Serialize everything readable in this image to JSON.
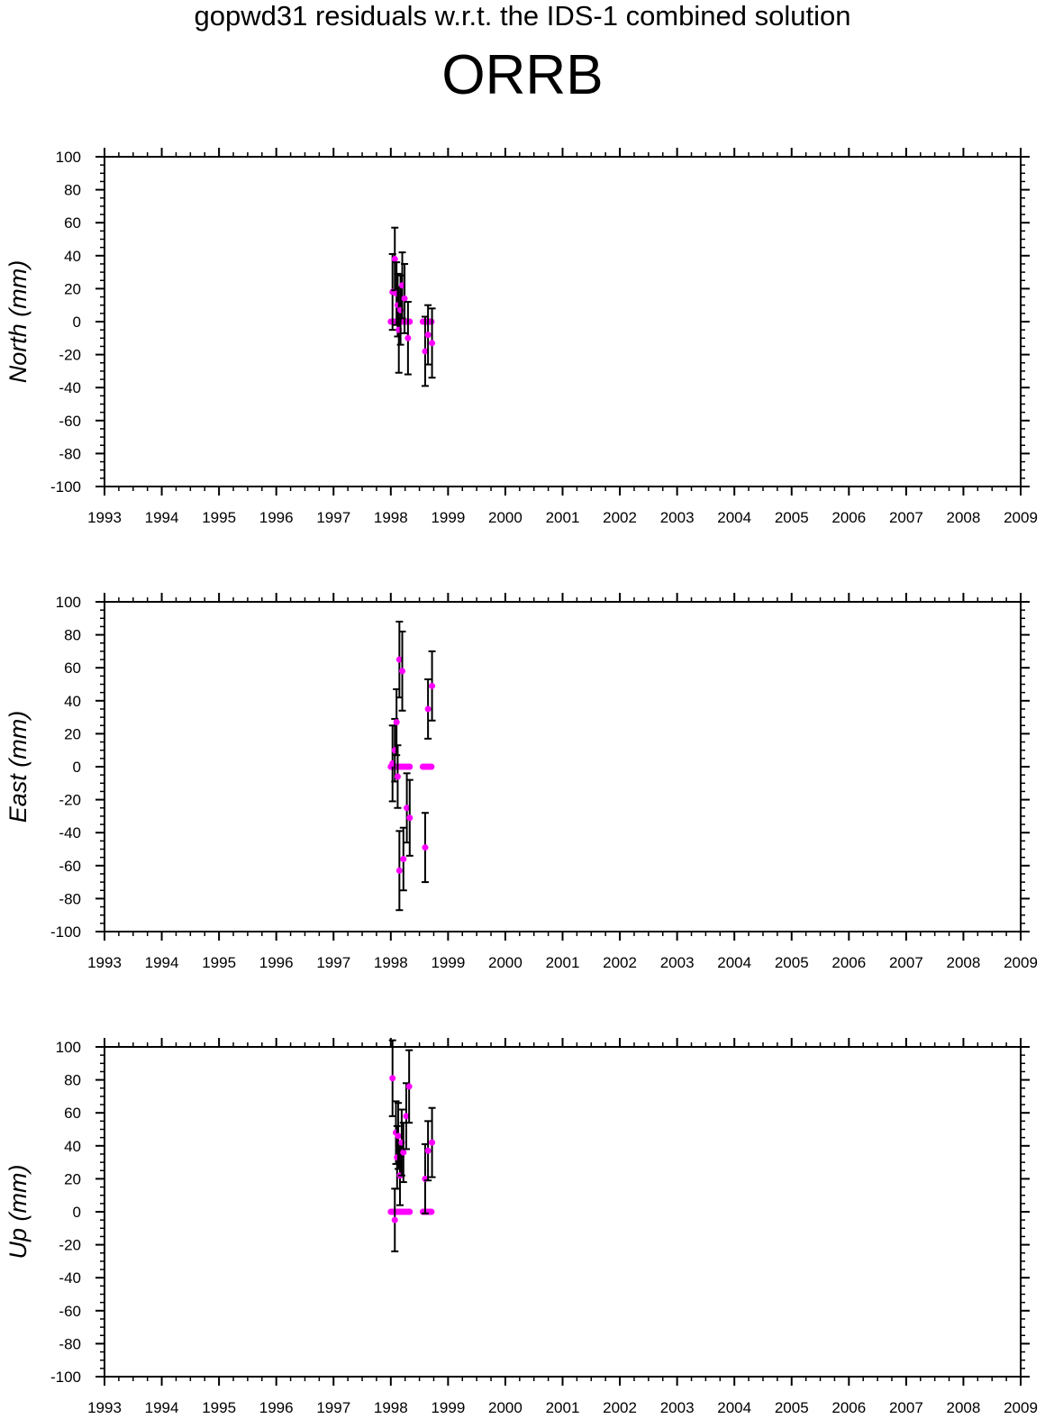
{
  "figure": {
    "title": "gopwd31 residuals w.r.t. the IDS-1 combined solution",
    "station": "ORRB"
  },
  "colors": {
    "points": "#ff00ff",
    "errorbars": "#000000",
    "axes": "#000000"
  },
  "chart_data": [
    {
      "type": "scatter",
      "ylabel": "North (mm)",
      "xlim": [
        1993,
        2009
      ],
      "ylim": [
        -100,
        100
      ],
      "xticks": [
        "1993",
        "1994",
        "1995",
        "1996",
        "1997",
        "1998",
        "1999",
        "2000",
        "2001",
        "2002",
        "2003",
        "2004",
        "2005",
        "2006",
        "2007",
        "2008",
        "2009"
      ],
      "yticks": [
        "100",
        "80",
        "60",
        "40",
        "20",
        "0",
        "-20",
        "-40",
        "-60",
        "-80",
        "-100"
      ],
      "zero_marks": [
        1998.0,
        1998.03,
        1998.06,
        1998.09,
        1998.12,
        1998.15,
        1998.18,
        1998.21,
        1998.24,
        1998.27,
        1998.3,
        1998.33,
        1998.56,
        1998.59,
        1998.62,
        1998.65,
        1998.68,
        1998.71
      ],
      "points": [
        {
          "x": 1998.03,
          "y": 18,
          "err": 23
        },
        {
          "x": 1998.07,
          "y": 38,
          "err": 19
        },
        {
          "x": 1998.1,
          "y": 17,
          "err": 19
        },
        {
          "x": 1998.12,
          "y": 10,
          "err": 19
        },
        {
          "x": 1998.14,
          "y": -5,
          "err": 26
        },
        {
          "x": 1998.17,
          "y": 7,
          "err": 21
        },
        {
          "x": 1998.2,
          "y": 22,
          "err": 20
        },
        {
          "x": 1998.24,
          "y": 14,
          "err": 21
        },
        {
          "x": 1998.3,
          "y": -10,
          "err": 22
        },
        {
          "x": 1998.6,
          "y": -18,
          "err": 21
        },
        {
          "x": 1998.65,
          "y": -8,
          "err": 18
        },
        {
          "x": 1998.72,
          "y": -13,
          "err": 21
        }
      ]
    },
    {
      "type": "scatter",
      "ylabel": "East (mm)",
      "xlim": [
        1993,
        2009
      ],
      "ylim": [
        -100,
        100
      ],
      "xticks": [
        "1993",
        "1994",
        "1995",
        "1996",
        "1997",
        "1998",
        "1999",
        "2000",
        "2001",
        "2002",
        "2003",
        "2004",
        "2005",
        "2006",
        "2007",
        "2008",
        "2009"
      ],
      "yticks": [
        "100",
        "80",
        "60",
        "40",
        "20",
        "0",
        "-20",
        "-40",
        "-60",
        "-80",
        "-100"
      ],
      "zero_marks": [
        1998.0,
        1998.03,
        1998.06,
        1998.09,
        1998.12,
        1998.15,
        1998.18,
        1998.21,
        1998.24,
        1998.27,
        1998.3,
        1998.33,
        1998.56,
        1998.59,
        1998.62,
        1998.65,
        1998.68,
        1998.71
      ],
      "points": [
        {
          "x": 1998.03,
          "y": 2,
          "err": 23
        },
        {
          "x": 1998.07,
          "y": 10,
          "err": 19
        },
        {
          "x": 1998.1,
          "y": 27,
          "err": 20
        },
        {
          "x": 1998.12,
          "y": -6,
          "err": 19
        },
        {
          "x": 1998.15,
          "y": 65,
          "err": 23
        },
        {
          "x": 1998.15,
          "y": -63,
          "err": 24
        },
        {
          "x": 1998.2,
          "y": 58,
          "err": 24
        },
        {
          "x": 1998.22,
          "y": -56,
          "err": 19
        },
        {
          "x": 1998.28,
          "y": -25,
          "err": 21
        },
        {
          "x": 1998.33,
          "y": -31,
          "err": 23
        },
        {
          "x": 1998.6,
          "y": -49,
          "err": 21
        },
        {
          "x": 1998.65,
          "y": 35,
          "err": 18
        },
        {
          "x": 1998.72,
          "y": 49,
          "err": 21
        }
      ]
    },
    {
      "type": "scatter",
      "ylabel": "Up (mm)",
      "xlim": [
        1993,
        2009
      ],
      "ylim": [
        -100,
        100
      ],
      "xticks": [
        "1993",
        "1994",
        "1995",
        "1996",
        "1997",
        "1998",
        "1999",
        "2000",
        "2001",
        "2002",
        "2003",
        "2004",
        "2005",
        "2006",
        "2007",
        "2008",
        "2009"
      ],
      "yticks": [
        "100",
        "80",
        "60",
        "40",
        "20",
        "0",
        "-20",
        "-40",
        "-60",
        "-80",
        "-100"
      ],
      "zero_marks": [
        1998.0,
        1998.03,
        1998.06,
        1998.09,
        1998.12,
        1998.15,
        1998.18,
        1998.21,
        1998.24,
        1998.27,
        1998.3,
        1998.33,
        1998.56,
        1998.59,
        1998.62,
        1998.65,
        1998.68,
        1998.71
      ],
      "points": [
        {
          "x": 1998.03,
          "y": 81,
          "err": 23
        },
        {
          "x": 1998.07,
          "y": -5,
          "err": 19
        },
        {
          "x": 1998.09,
          "y": 48,
          "err": 19
        },
        {
          "x": 1998.11,
          "y": 33,
          "err": 19
        },
        {
          "x": 1998.13,
          "y": 46,
          "err": 20
        },
        {
          "x": 1998.16,
          "y": 22,
          "err": 18
        },
        {
          "x": 1998.19,
          "y": 42,
          "err": 20
        },
        {
          "x": 1998.22,
          "y": 36,
          "err": 18
        },
        {
          "x": 1998.27,
          "y": 58,
          "err": 20
        },
        {
          "x": 1998.32,
          "y": 76,
          "err": 22
        },
        {
          "x": 1998.6,
          "y": 20,
          "err": 21
        },
        {
          "x": 1998.65,
          "y": 37,
          "err": 18
        },
        {
          "x": 1998.72,
          "y": 42,
          "err": 21
        }
      ]
    }
  ]
}
